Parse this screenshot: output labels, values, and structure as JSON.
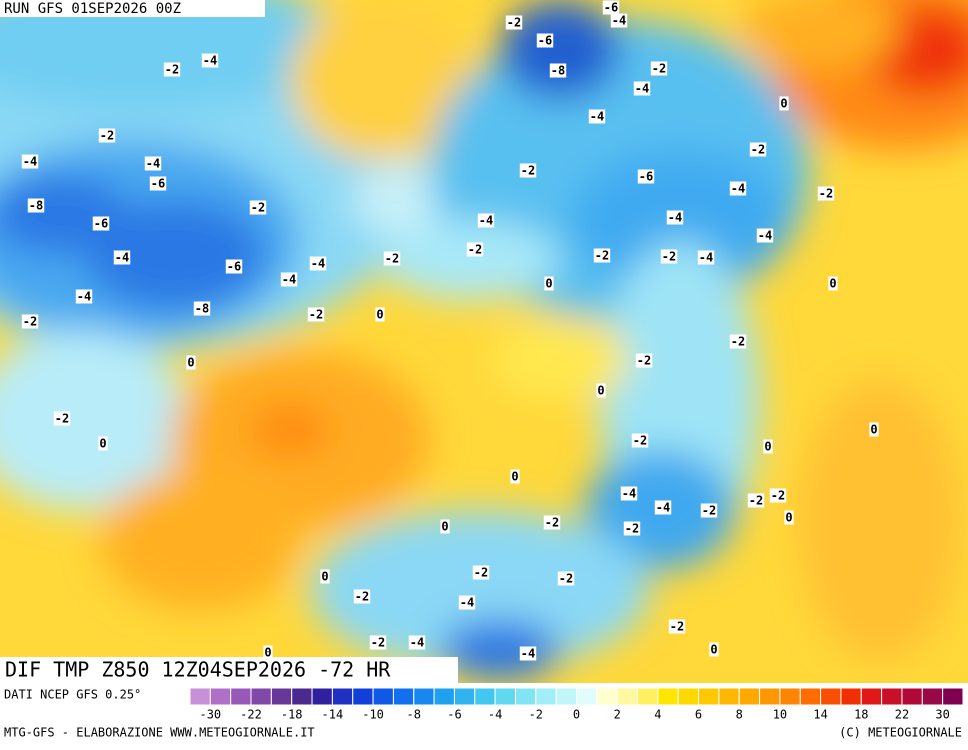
{
  "header": {
    "run": "RUN GFS 01SEP2026 00Z"
  },
  "map": {
    "title": "DIF TMP Z850 12Z04SEP2026 -72 HR",
    "labels": [
      "-2",
      "-6",
      "-4",
      "-6",
      "-2",
      "-4",
      "-8",
      "-2",
      "-4",
      "0",
      "-2",
      "-4",
      "-4",
      "-4",
      "-6",
      "-2",
      "-2",
      "-6",
      "-4",
      "-2",
      "-8",
      "-2",
      "-6",
      "-4",
      "-4",
      "-4",
      "-4",
      "-2",
      "-2",
      "-2",
      "-4",
      "-6",
      "-4",
      "-2",
      "-4",
      "0",
      "0",
      "-4",
      "-8",
      "-2",
      "0",
      "-2",
      "-2",
      "-2",
      "0",
      "0",
      "-2",
      "0",
      "0",
      "-2",
      "0",
      "0",
      "-4",
      "-2",
      "-2",
      "-4",
      "-2",
      "0",
      "-2",
      "0",
      "-2",
      "-2",
      "-2",
      "0",
      "-2",
      "-4",
      "-2",
      "-2",
      "-4",
      "0",
      "0",
      "-4"
    ]
  },
  "legend": {
    "source": "DATI NCEP GFS 0.25°",
    "labels": [
      "-30",
      "-22",
      "-18",
      "-14",
      "-10",
      "-8",
      "-6",
      "-4",
      "-2",
      "0",
      "2",
      "4",
      "6",
      "8",
      "10",
      "14",
      "18",
      "22",
      "30"
    ],
    "colors": [
      "#c890d8",
      "#b070c8",
      "#9858b8",
      "#8048a8",
      "#683898",
      "#4b2a90",
      "#3020a0",
      "#2030c0",
      "#1040d8",
      "#1058e8",
      "#1070f0",
      "#1888f0",
      "#20a0f0",
      "#30b4f0",
      "#40c8f0",
      "#60d8f0",
      "#80e4f4",
      "#a0eef8",
      "#c0f6fa",
      "#e0fcfc",
      "#ffffd0",
      "#fff8a0",
      "#fff060",
      "#ffe600",
      "#ffd800",
      "#ffc800",
      "#ffb800",
      "#ffa800",
      "#ff9800",
      "#ff8400",
      "#ff6c00",
      "#f85000",
      "#f03000",
      "#e01818",
      "#c81028",
      "#b00838",
      "#980848",
      "#800050"
    ]
  },
  "footer": {
    "left": "MTG-GFS - ELABORAZIONE WWW.METEOGIORNALE.IT",
    "right": "(C) METEOGIORNALE"
  }
}
